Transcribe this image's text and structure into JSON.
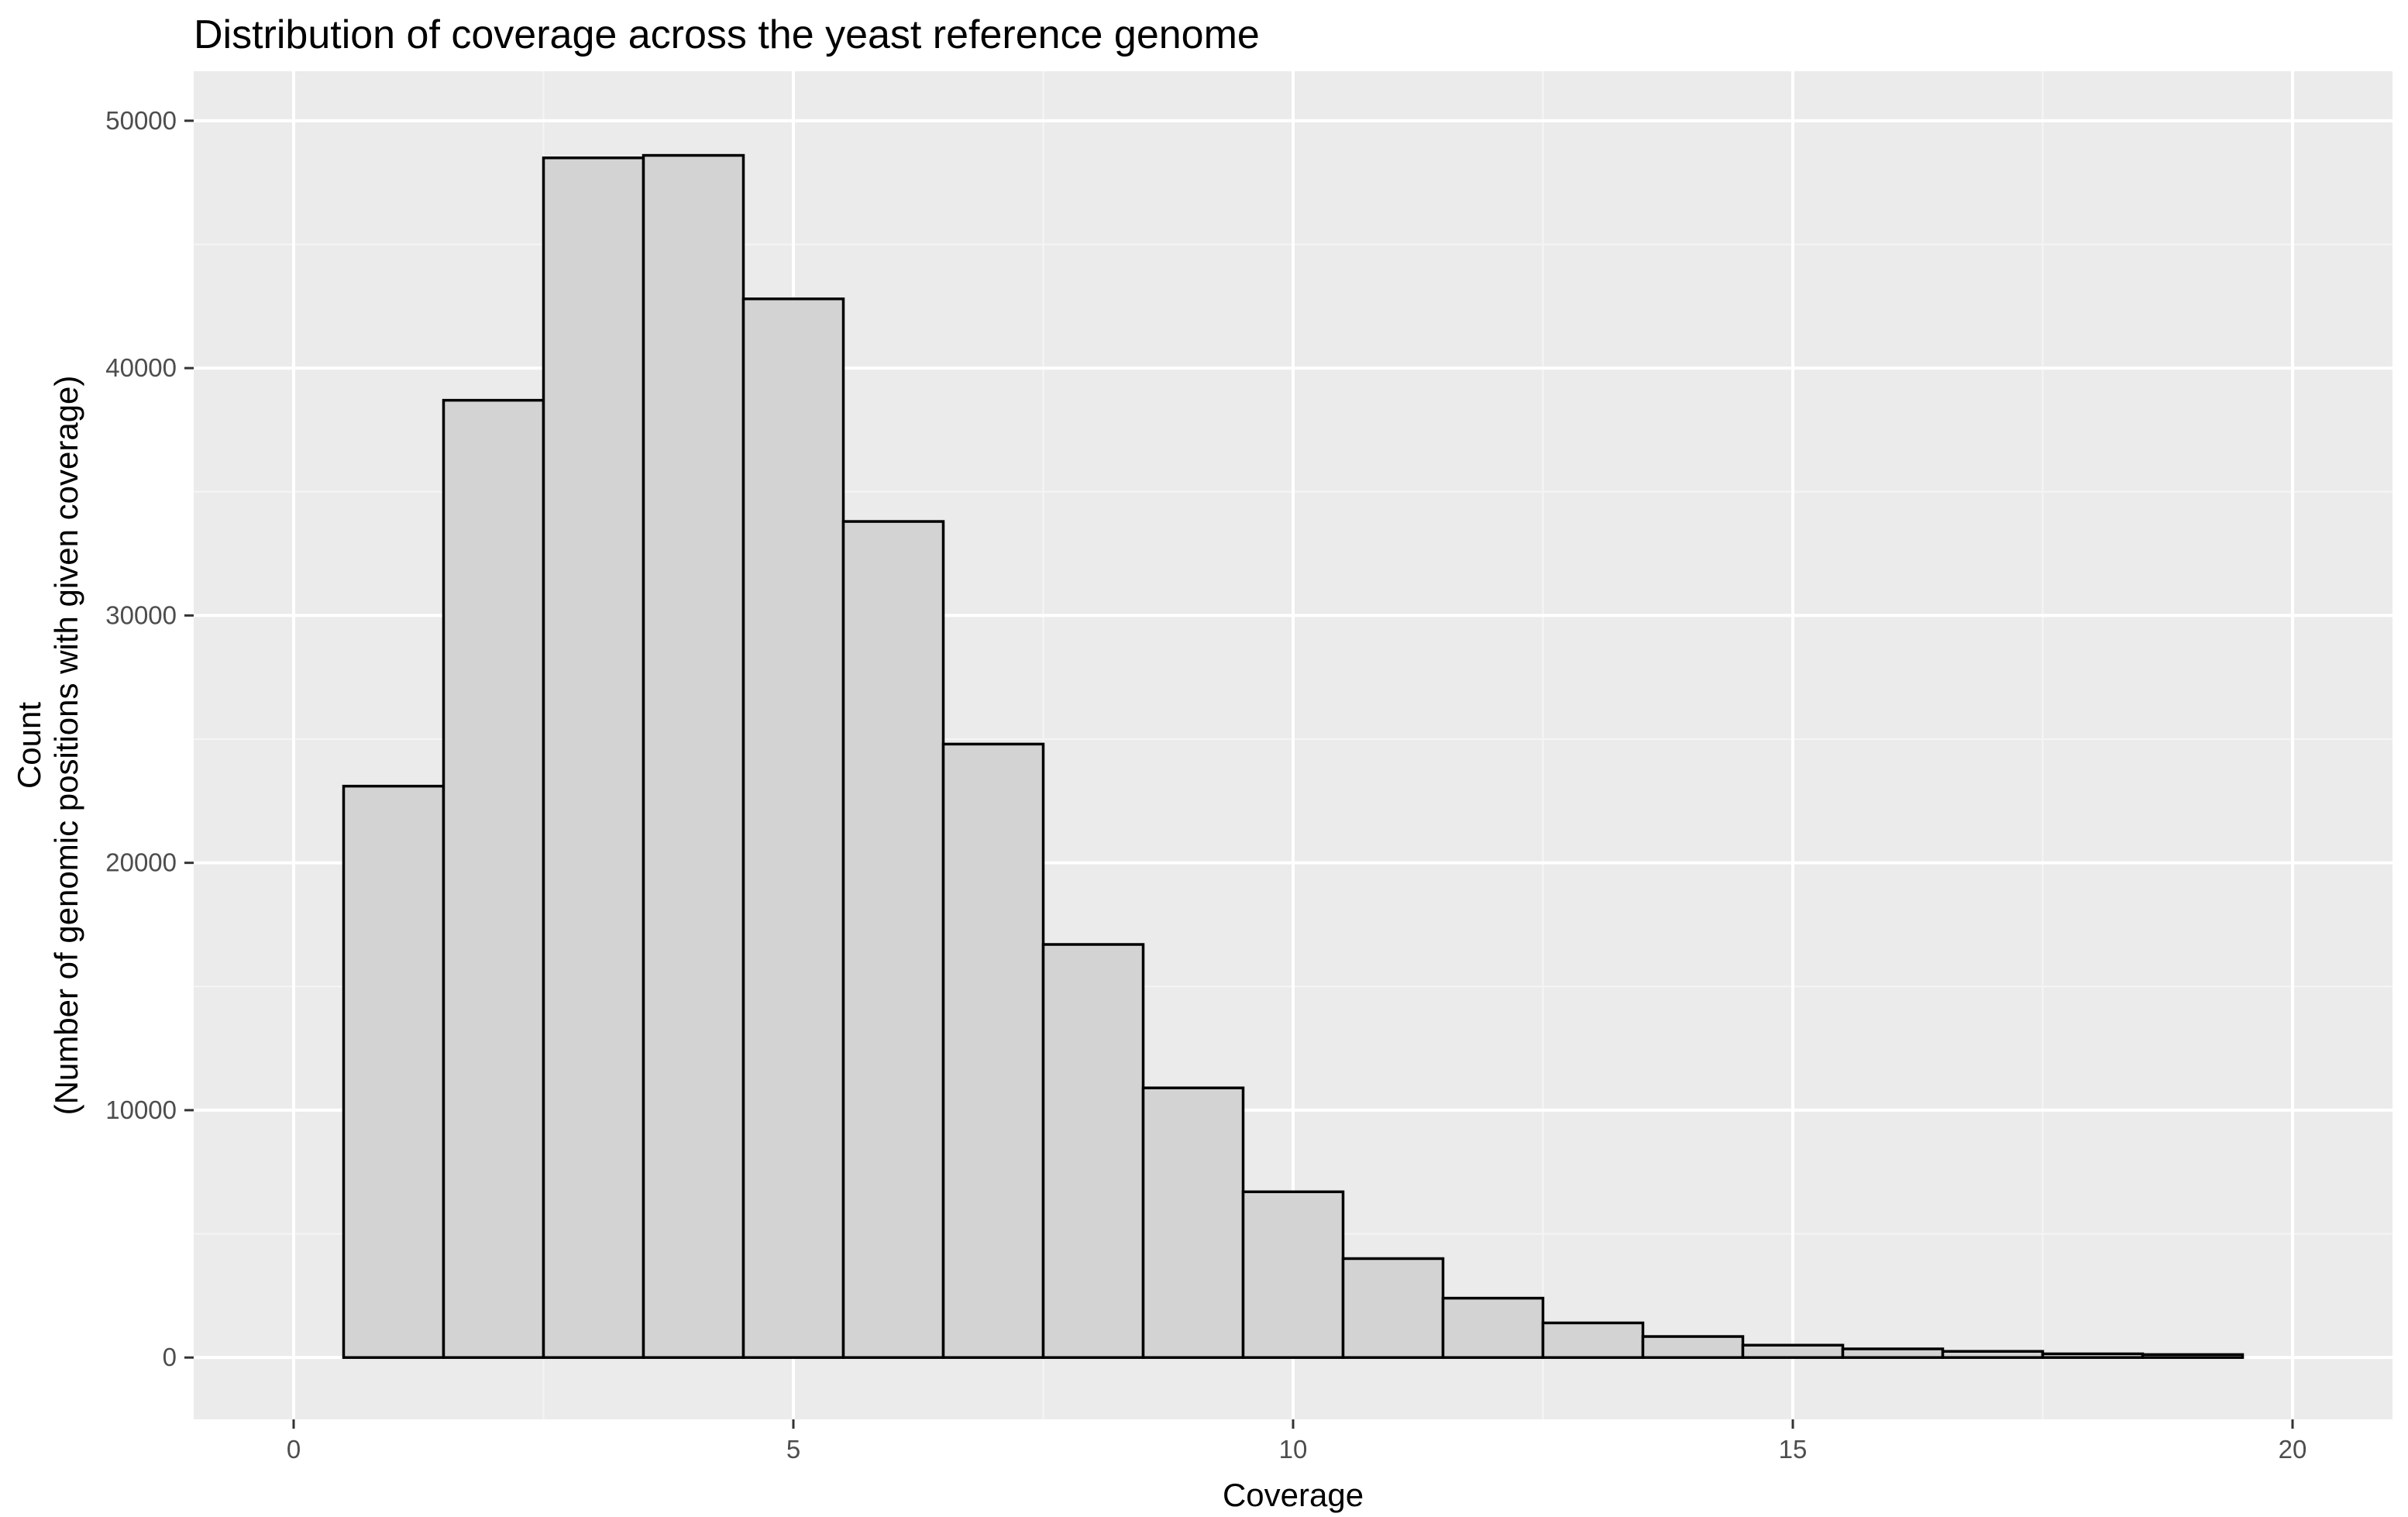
{
  "chart_data": {
    "type": "bar",
    "subtype": "histogram",
    "title": "Distribution of coverage across the yeast reference genome",
    "xlabel": "Coverage",
    "ylabel_lines": [
      "Count",
      "(Number of genomic positions with given coverage)"
    ],
    "xlim": [
      -1,
      21
    ],
    "ylim": [
      -2500,
      52000
    ],
    "x_ticks": [
      0,
      5,
      10,
      15,
      20
    ],
    "x_tick_labels": [
      "0",
      "5",
      "10",
      "15",
      "20"
    ],
    "y_ticks": [
      0,
      10000,
      20000,
      30000,
      40000,
      50000
    ],
    "y_tick_labels": [
      "0",
      "10000",
      "20000",
      "30000",
      "40000",
      "50000"
    ],
    "grid": true,
    "legend": "none",
    "bin_width": 1,
    "x": [
      1,
      2,
      3,
      4,
      5,
      6,
      7,
      8,
      9,
      10,
      11,
      12,
      13,
      14,
      15,
      16,
      17,
      18,
      19
    ],
    "values": [
      23100,
      38700,
      48500,
      48600,
      42800,
      33800,
      24800,
      16700,
      10900,
      6700,
      4000,
      2400,
      1400,
      850,
      500,
      350,
      250,
      150,
      120
    ],
    "colors": {
      "panel_background": "#ebebeb",
      "grid_major": "#ffffff",
      "grid_minor": "#f5f5f5",
      "bar_fill": "#d3d3d3",
      "bar_outline": "#000000",
      "tick_label": "#4d4d4d",
      "tick_mark": "#333333"
    }
  }
}
